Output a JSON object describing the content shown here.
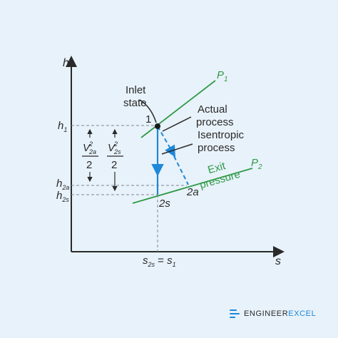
{
  "axes": {
    "y_label": "h",
    "x_label": "s"
  },
  "lines": {
    "p1_label": "P",
    "p1_sub": "1",
    "p2_label": "P",
    "p2_sub": "2",
    "exit_pressure_line1": "Exit",
    "exit_pressure_line2": "pressure"
  },
  "annotations": {
    "inlet_state_line1": "Inlet",
    "inlet_state_line2": "state",
    "point_1": "1",
    "actual_process_line1": "Actual",
    "actual_process_line2": "process",
    "isentropic_process_line1": "Isentropic",
    "isentropic_process_line2": "process",
    "point_2a": "2a",
    "point_2s": "2s"
  },
  "enthalpy_labels": {
    "h1": "h",
    "h1_sub": "1",
    "h2a": "h",
    "h2a_sub": "2a",
    "h2s": "h",
    "h2s_sub": "2s"
  },
  "entropy_labels": {
    "s2s": "s",
    "s2s_sub": "2s",
    "equals": " = ",
    "s1": "s",
    "s1_sub": "1"
  },
  "velocity_terms": {
    "v2a_num": "V",
    "v2a_sup": "2",
    "v2a_sub": "2a",
    "v2a_den": "2",
    "v2s_num": "V",
    "v2s_sup": "2",
    "v2s_sub": "2s",
    "v2s_den": "2"
  },
  "brand": {
    "prefix": "ENGINEER",
    "suffix": "EXCEL"
  },
  "colors": {
    "axis": "#2a2a2a",
    "pressure_line": "#2f9a48",
    "process_arrow": "#1e88d9",
    "dashed_guide": "#808890",
    "background": "#e8f2fa"
  }
}
